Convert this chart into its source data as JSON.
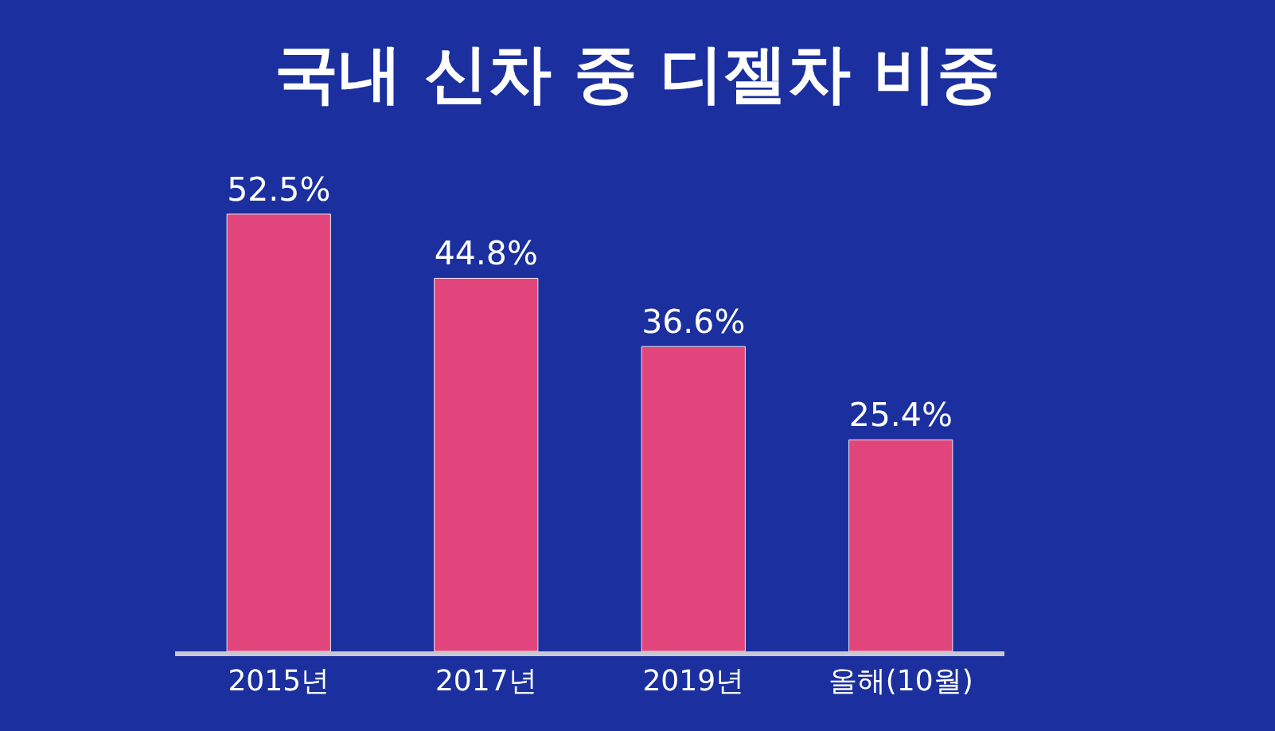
{
  "chart_data": {
    "type": "bar",
    "title": "국내 신차 중 디젤차 비중",
    "categories": [
      "2015년",
      "2017년",
      "2019년",
      "올해(10월)"
    ],
    "values": [
      52.5,
      44.8,
      36.6,
      25.4
    ],
    "value_labels": [
      "52.5%",
      "44.8%",
      "36.6%",
      "25.4%"
    ],
    "color": "#e2457c",
    "grid": false,
    "legend": false
  }
}
